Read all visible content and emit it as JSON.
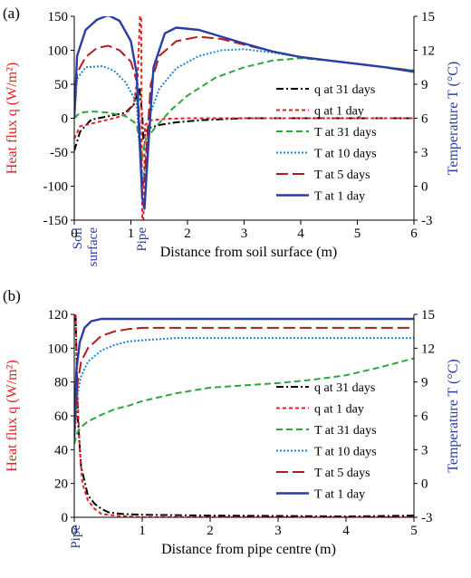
{
  "chart_data": [
    {
      "panel_label": "(a)",
      "type": "line",
      "xlabel": "Distance from soil surface (m)",
      "ylabel_left": "Heat flux q (W/m²)",
      "ylabel_right": "Temperature T (°C)",
      "xlim": [
        0,
        6
      ],
      "ylim_left": [
        -150,
        150
      ],
      "ylim_right": [
        -3,
        15
      ],
      "x_ticks": [
        "0",
        "1",
        "2",
        "3",
        "4",
        "5",
        "6"
      ],
      "y_left_ticks": [
        "-150",
        "-100",
        "-50",
        "0",
        "50",
        "100",
        "150"
      ],
      "y_right_ticks": [
        "-3",
        "0",
        "3",
        "6",
        "9",
        "12",
        "15"
      ],
      "x_annotations": {
        "soil": "Soil",
        "surface": "surface",
        "pipe": "Pipe"
      },
      "pipe_x": 1.2,
      "grid": false,
      "legend_position": "right-center",
      "series": [
        {
          "name": "q at 31 days",
          "axis": "left",
          "color": "#000000",
          "dash": "dashdot",
          "points": [
            [
              0,
              -48
            ],
            [
              0.1,
              -20
            ],
            [
              0.3,
              -2
            ],
            [
              0.6,
              3
            ],
            [
              0.9,
              8
            ],
            [
              1.05,
              20
            ],
            [
              1.15,
              45
            ],
            [
              1.2,
              5
            ],
            [
              1.22,
              -30
            ],
            [
              1.3,
              -15
            ],
            [
              1.5,
              -10
            ],
            [
              1.8,
              -6
            ],
            [
              2.2,
              -3
            ],
            [
              3,
              0
            ],
            [
              4,
              0
            ],
            [
              5,
              0
            ],
            [
              6,
              0
            ]
          ]
        },
        {
          "name": "q at 1 day",
          "axis": "left",
          "color": "#e32222",
          "dash": "shortdash",
          "points": [
            [
              0,
              -30
            ],
            [
              0.1,
              -12
            ],
            [
              0.4,
              -6
            ],
            [
              0.7,
              0
            ],
            [
              0.9,
              5
            ],
            [
              1.05,
              20
            ],
            [
              1.12,
              60
            ],
            [
              1.16,
              150
            ],
            [
              1.18,
              150
            ],
            [
              1.2,
              -150
            ],
            [
              1.22,
              -150
            ],
            [
              1.25,
              -10
            ],
            [
              1.35,
              -3
            ],
            [
              1.6,
              -1
            ],
            [
              2,
              0
            ],
            [
              3,
              0
            ],
            [
              4,
              0
            ],
            [
              5,
              0
            ],
            [
              6,
              0
            ]
          ]
        },
        {
          "name": "T at 31 days",
          "axis": "right",
          "color": "#2ea63a",
          "dash": "dash",
          "points": [
            [
              0,
              6
            ],
            [
              0.1,
              6.5
            ],
            [
              0.3,
              6.6
            ],
            [
              0.6,
              6.5
            ],
            [
              0.9,
              6.2
            ],
            [
              1.1,
              5.5
            ],
            [
              1.2,
              2.5
            ],
            [
              1.25,
              4
            ],
            [
              1.4,
              5
            ],
            [
              1.7,
              6.7
            ],
            [
              2,
              8
            ],
            [
              2.5,
              9.6
            ],
            [
              3,
              10.5
            ],
            [
              3.5,
              11.1
            ],
            [
              4,
              11.3
            ],
            [
              4.5,
              11.1
            ],
            [
              5,
              10.8
            ],
            [
              5.5,
              10.5
            ],
            [
              6,
              10.2
            ]
          ]
        },
        {
          "name": "T at 10 days",
          "axis": "right",
          "color": "#1f86d6",
          "dash": "dot",
          "points": [
            [
              0,
              6
            ],
            [
              0.05,
              9.5
            ],
            [
              0.2,
              10.5
            ],
            [
              0.5,
              10.6
            ],
            [
              0.7,
              10.2
            ],
            [
              0.9,
              9.2
            ],
            [
              1.1,
              7.4
            ],
            [
              1.2,
              0
            ],
            [
              1.25,
              1.5
            ],
            [
              1.35,
              6.5
            ],
            [
              1.5,
              8.6
            ],
            [
              1.8,
              10.4
            ],
            [
              2.2,
              11.5
            ],
            [
              2.6,
              12
            ],
            [
              3,
              12.1
            ],
            [
              3.5,
              11.8
            ],
            [
              4,
              11.4
            ],
            [
              4.5,
              11.1
            ],
            [
              5,
              10.8
            ],
            [
              5.5,
              10.5
            ],
            [
              6,
              10.2
            ]
          ]
        },
        {
          "name": "T at 5 days",
          "axis": "right",
          "color": "#b01d1d",
          "dash": "longdash",
          "points": [
            [
              0,
              6
            ],
            [
              0.05,
              10
            ],
            [
              0.2,
              11.4
            ],
            [
              0.4,
              12.2
            ],
            [
              0.6,
              12.4
            ],
            [
              0.8,
              12
            ],
            [
              1,
              11
            ],
            [
              1.12,
              9
            ],
            [
              1.2,
              0
            ],
            [
              1.24,
              0.5
            ],
            [
              1.35,
              9
            ],
            [
              1.5,
              11.5
            ],
            [
              1.8,
              12.8
            ],
            [
              2.2,
              13.2
            ],
            [
              2.6,
              13
            ],
            [
              3,
              12.5
            ],
            [
              3.5,
              11.9
            ],
            [
              4,
              11.4
            ],
            [
              4.5,
              11.1
            ],
            [
              5,
              10.8
            ],
            [
              5.5,
              10.5
            ],
            [
              6,
              10.2
            ]
          ]
        },
        {
          "name": "T at 1 day",
          "axis": "right",
          "color": "#2b3ea3",
          "dash": "solid",
          "points": [
            [
              0,
              6
            ],
            [
              0.05,
              11.5
            ],
            [
              0.2,
              13.8
            ],
            [
              0.4,
              14.7
            ],
            [
              0.6,
              15.1
            ],
            [
              0.8,
              14.6
            ],
            [
              1,
              12.8
            ],
            [
              1.1,
              10
            ],
            [
              1.2,
              -1
            ],
            [
              1.24,
              -2
            ],
            [
              1.3,
              3
            ],
            [
              1.4,
              10.5
            ],
            [
              1.6,
              13.5
            ],
            [
              1.8,
              14
            ],
            [
              2.2,
              13.8
            ],
            [
              2.6,
              13.2
            ],
            [
              3,
              12.6
            ],
            [
              3.5,
              11.9
            ],
            [
              4,
              11.4
            ],
            [
              4.5,
              11.1
            ],
            [
              5,
              10.8
            ],
            [
              5.5,
              10.5
            ],
            [
              6,
              10.1
            ]
          ]
        }
      ]
    },
    {
      "panel_label": "(b)",
      "type": "line",
      "xlabel": "Distance from pipe centre (m)",
      "ylabel_left": "Heat flux q (W/m²)",
      "ylabel_right": "Temperature T (°C)",
      "xlim": [
        0,
        5
      ],
      "ylim_left": [
        0,
        120
      ],
      "ylim_right": [
        -3,
        15
      ],
      "x_ticks": [
        "0",
        "1",
        "2",
        "3",
        "4",
        "5"
      ],
      "y_left_ticks": [
        "0",
        "20",
        "40",
        "60",
        "80",
        "100",
        "120"
      ],
      "y_right_ticks": [
        "-3",
        "0",
        "3",
        "6",
        "9",
        "12",
        "15"
      ],
      "x_annotations": {
        "pipe": "Pipe"
      },
      "grid": false,
      "legend_position": "right-center",
      "series": [
        {
          "name": "q at 31 days",
          "axis": "left",
          "color": "#000000",
          "dash": "dashdot",
          "points": [
            [
              0.02,
              120
            ],
            [
              0.05,
              60
            ],
            [
              0.1,
              30
            ],
            [
              0.2,
              13
            ],
            [
              0.3,
              8
            ],
            [
              0.4,
              5
            ],
            [
              0.5,
              3
            ],
            [
              0.7,
              2
            ],
            [
              1,
              1.5
            ],
            [
              2,
              1
            ],
            [
              3,
              0.8
            ],
            [
              4,
              0.5
            ],
            [
              5,
              1
            ]
          ]
        },
        {
          "name": "q at 1 day",
          "axis": "left",
          "color": "#e32222",
          "dash": "shortdash",
          "points": [
            [
              0.02,
              120
            ],
            [
              0.04,
              80
            ],
            [
              0.08,
              40
            ],
            [
              0.12,
              20
            ],
            [
              0.2,
              10
            ],
            [
              0.3,
              5
            ],
            [
              0.4,
              2
            ],
            [
              0.6,
              1
            ],
            [
              1,
              0
            ],
            [
              2,
              0
            ],
            [
              3,
              0
            ],
            [
              4,
              0
            ],
            [
              5,
              0
            ]
          ]
        },
        {
          "name": "T at 31 days",
          "axis": "right",
          "color": "#2ea63a",
          "dash": "dash",
          "points": [
            [
              0,
              3.5
            ],
            [
              0.05,
              4.6
            ],
            [
              0.1,
              5
            ],
            [
              0.2,
              5.5
            ],
            [
              0.4,
              6.1
            ],
            [
              0.6,
              6.6
            ],
            [
              0.8,
              6.9
            ],
            [
              1,
              7.3
            ],
            [
              1.5,
              8
            ],
            [
              2,
              8.5
            ],
            [
              2.5,
              8.7
            ],
            [
              3,
              8.9
            ],
            [
              3.5,
              9.2
            ],
            [
              4,
              9.6
            ],
            [
              4.5,
              10.3
            ],
            [
              5,
              11.1
            ]
          ]
        },
        {
          "name": "T at 10 days",
          "axis": "right",
          "color": "#1f86d6",
          "dash": "dot",
          "points": [
            [
              0,
              4
            ],
            [
              0.05,
              8
            ],
            [
              0.1,
              9.5
            ],
            [
              0.2,
              10.8
            ],
            [
              0.4,
              11.8
            ],
            [
              0.6,
              12.3
            ],
            [
              0.8,
              12.6
            ],
            [
              1,
              12.7
            ],
            [
              1.5,
              12.9
            ],
            [
              2,
              12.9
            ],
            [
              3,
              12.9
            ],
            [
              4,
              12.9
            ],
            [
              5,
              12.9
            ]
          ]
        },
        {
          "name": "T at 5 days",
          "axis": "right",
          "color": "#b01d1d",
          "dash": "longdash",
          "points": [
            [
              0,
              4
            ],
            [
              0.05,
              9
            ],
            [
              0.1,
              10.8
            ],
            [
              0.2,
              12
            ],
            [
              0.4,
              13.1
            ],
            [
              0.6,
              13.5
            ],
            [
              0.8,
              13.7
            ],
            [
              1,
              13.8
            ],
            [
              1.5,
              13.8
            ],
            [
              2,
              13.8
            ],
            [
              3,
              13.8
            ],
            [
              4,
              13.8
            ],
            [
              5,
              13.8
            ]
          ]
        },
        {
          "name": "T at 1 day",
          "axis": "right",
          "color": "#2b3ea3",
          "dash": "solid",
          "points": [
            [
              0,
              4
            ],
            [
              0.03,
              10
            ],
            [
              0.08,
              12.5
            ],
            [
              0.15,
              13.8
            ],
            [
              0.25,
              14.4
            ],
            [
              0.4,
              14.6
            ],
            [
              0.6,
              14.6
            ],
            [
              1,
              14.6
            ],
            [
              2,
              14.6
            ],
            [
              3,
              14.6
            ],
            [
              4,
              14.6
            ],
            [
              5,
              14.6
            ]
          ]
        }
      ]
    }
  ]
}
